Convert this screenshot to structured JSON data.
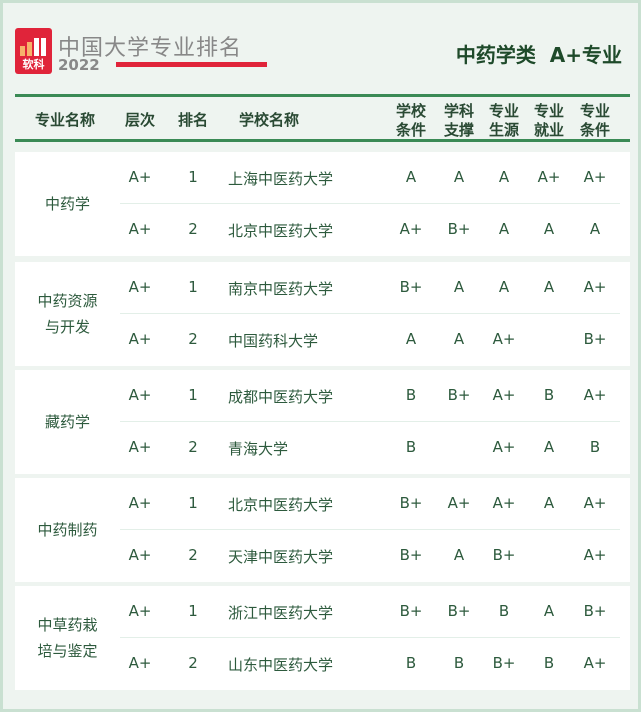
{
  "header": {
    "brand_mark": "软科",
    "brand": "中国大学专业排名",
    "year": "2022",
    "title": "中药学类  A+专业",
    "accent": "#e0243a",
    "line_color": "#3a8a55"
  },
  "columns": [
    "专业名称",
    "层次",
    "排名",
    "学校名称",
    "学校\n条件",
    "学科\n支撑",
    "专业\n生源",
    "专业\n就业",
    "专业\n条件"
  ],
  "groups": [
    {
      "major": "中药学",
      "rows": [
        [
          "A+",
          "1",
          "上海中医药大学",
          "A",
          "A",
          "A",
          "A+",
          "A+"
        ],
        [
          "A+",
          "2",
          "北京中医药大学",
          "A+",
          "B+",
          "A",
          "A",
          "A"
        ]
      ]
    },
    {
      "major": "中药资源\n与开发",
      "rows": [
        [
          "A+",
          "1",
          "南京中医药大学",
          "B+",
          "A",
          "A",
          "A",
          "A+"
        ],
        [
          "A+",
          "2",
          "中国药科大学",
          "A",
          "A",
          "A+",
          "",
          "B+"
        ]
      ]
    },
    {
      "major": "藏药学",
      "rows": [
        [
          "A+",
          "1",
          "成都中医药大学",
          "B",
          "B+",
          "A+",
          "B",
          "A+"
        ],
        [
          "A+",
          "2",
          "青海大学",
          "B",
          "",
          "A+",
          "A",
          "B"
        ]
      ]
    },
    {
      "major": "中药制药",
      "rows": [
        [
          "A+",
          "1",
          "北京中医药大学",
          "B+",
          "A+",
          "A+",
          "A",
          "A+"
        ],
        [
          "A+",
          "2",
          "天津中医药大学",
          "B+",
          "A",
          "B+",
          "",
          "A+"
        ]
      ]
    },
    {
      "major": "中草药栽\n培与鉴定",
      "rows": [
        [
          "A+",
          "1",
          "浙江中医药大学",
          "B+",
          "B+",
          "B",
          "A",
          "B+"
        ],
        [
          "A+",
          "2",
          "山东中医药大学",
          "B",
          "B",
          "B+",
          "B",
          "A+"
        ]
      ]
    }
  ]
}
